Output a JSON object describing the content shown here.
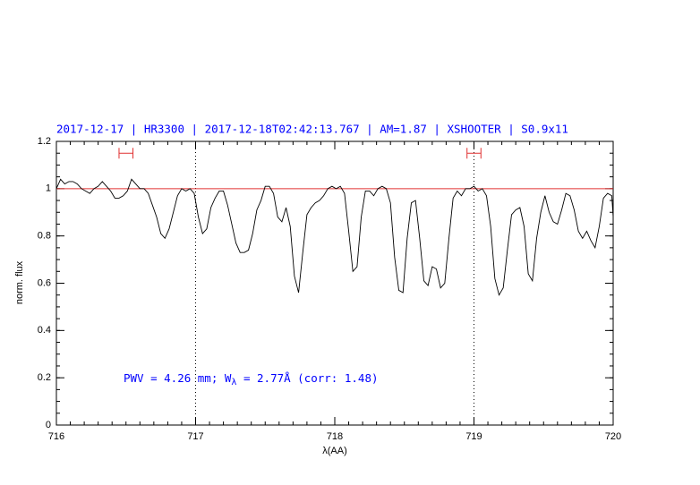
{
  "chart_data": {
    "type": "line",
    "title": "2017-12-17 | HR3300 | 2017-12-18T02:42:13.767 | AM=1.87 | XSHOOTER | S0.9x11",
    "x_label": "λ(AA)",
    "y_label": "norm. flux",
    "annotation": {
      "prefix": "PWV = 4.26 mm; W",
      "subscript": "λ",
      "suffix": " = 2.77Å (corr: 1.48)"
    },
    "color": "#000000",
    "title_color": "#0000ff",
    "xlim": [
      716,
      720
    ],
    "xticks": [
      716,
      717,
      718,
      719,
      720
    ],
    "ylim": [
      0,
      1.2
    ],
    "yticks": [
      0,
      0.2,
      0.4,
      0.6,
      0.8,
      1,
      1.2
    ],
    "reference_line": {
      "y": 1,
      "color": "#e03030"
    },
    "vlines": [
      717,
      719
    ],
    "markers": [
      {
        "x": [
          716.45,
          716.55
        ],
        "y": 1.15
      },
      {
        "x": [
          718.95,
          719.05
        ],
        "y": 1.15
      }
    ],
    "x": [
      716,
      716.03,
      716.06,
      716.09,
      716.12,
      716.15,
      716.18,
      716.21,
      716.24,
      716.27,
      716.3,
      716.33,
      716.36,
      716.39,
      716.42,
      716.45,
      716.48,
      716.51,
      716.54,
      716.57,
      716.6,
      716.63,
      716.66,
      716.69,
      716.72,
      716.75,
      716.78,
      716.81,
      716.84,
      716.87,
      716.9,
      716.93,
      716.96,
      716.99,
      717.02,
      717.05,
      717.08,
      717.11,
      717.14,
      717.17,
      717.2,
      717.23,
      717.26,
      717.29,
      717.32,
      717.35,
      717.38,
      717.41,
      717.44,
      717.47,
      717.5,
      717.53,
      717.56,
      717.59,
      717.62,
      717.65,
      717.68,
      717.71,
      717.74,
      717.77,
      717.8,
      717.83,
      717.86,
      717.89,
      717.92,
      717.95,
      717.98,
      718.01,
      718.04,
      718.07,
      718.1,
      718.13,
      718.16,
      718.19,
      718.22,
      718.25,
      718.28,
      718.31,
      718.34,
      718.37,
      718.4,
      718.43,
      718.46,
      718.49,
      718.52,
      718.55,
      718.58,
      718.61,
      718.64,
      718.67,
      718.7,
      718.73,
      718.76,
      718.79,
      718.82,
      718.85,
      718.88,
      718.91,
      718.94,
      718.97,
      719,
      719.03,
      719.06,
      719.09,
      719.12,
      719.15,
      719.18,
      719.21,
      719.24,
      719.27,
      719.3,
      719.33,
      719.36,
      719.39,
      719.42,
      719.45,
      719.48,
      719.51,
      719.54,
      719.57,
      719.6,
      719.63,
      719.66,
      719.69,
      719.72,
      719.75,
      719.78,
      719.81,
      719.84,
      719.87,
      719.9,
      719.93,
      719.96,
      719.99,
      720
    ],
    "values": [
      1.0,
      1.04,
      1.02,
      1.03,
      1.03,
      1.02,
      1.0,
      0.99,
      0.98,
      1.0,
      1.01,
      1.03,
      1.01,
      0.99,
      0.96,
      0.96,
      0.97,
      0.99,
      1.04,
      1.02,
      1.0,
      1.0,
      0.98,
      0.93,
      0.88,
      0.81,
      0.79,
      0.83,
      0.9,
      0.97,
      1.0,
      0.99,
      1.0,
      0.98,
      0.88,
      0.81,
      0.83,
      0.92,
      0.96,
      0.99,
      0.99,
      0.93,
      0.85,
      0.77,
      0.73,
      0.73,
      0.74,
      0.81,
      0.91,
      0.95,
      1.01,
      1.01,
      0.98,
      0.88,
      0.86,
      0.92,
      0.84,
      0.63,
      0.56,
      0.73,
      0.89,
      0.92,
      0.94,
      0.95,
      0.97,
      1.0,
      1.01,
      1.0,
      1.01,
      0.98,
      0.82,
      0.65,
      0.67,
      0.88,
      0.99,
      0.99,
      0.97,
      1.0,
      1.01,
      1.0,
      0.94,
      0.71,
      0.57,
      0.56,
      0.79,
      0.94,
      0.95,
      0.79,
      0.61,
      0.59,
      0.67,
      0.66,
      0.58,
      0.6,
      0.79,
      0.96,
      0.99,
      0.97,
      1.0,
      1.0,
      1.01,
      0.99,
      1.0,
      0.97,
      0.84,
      0.62,
      0.55,
      0.58,
      0.74,
      0.89,
      0.91,
      0.92,
      0.84,
      0.64,
      0.61,
      0.79,
      0.9,
      0.97,
      0.9,
      0.86,
      0.85,
      0.91,
      0.98,
      0.97,
      0.91,
      0.82,
      0.79,
      0.82,
      0.78,
      0.75,
      0.84,
      0.96,
      0.98,
      0.97,
      0.88
    ]
  }
}
